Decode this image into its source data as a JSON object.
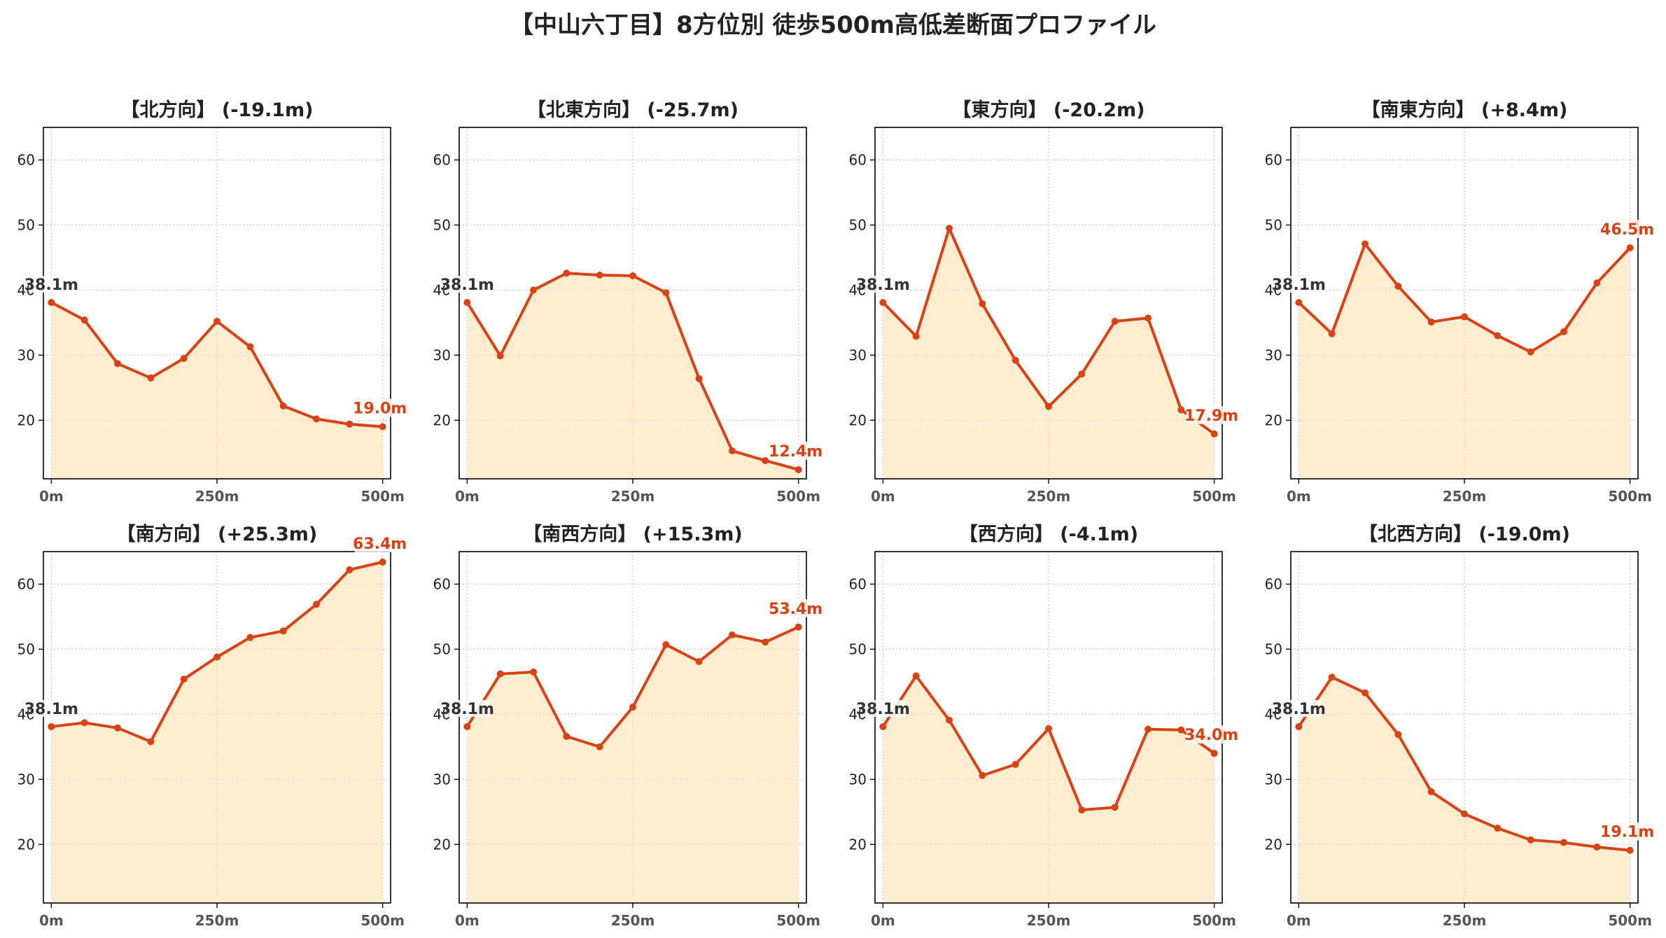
{
  "title": "【中山六丁目】8方位別 徒歩500m高低差断面プロファイル",
  "colors": {
    "line": "#d84315",
    "fill": "#ffe0b2",
    "start_label": "#333333",
    "end_label": "#d84315",
    "grid": "#cccccc",
    "axis": "#000000"
  },
  "chart_data": [
    {
      "type": "area",
      "title": "【北方向】 (-19.1m)",
      "x": [
        0,
        50,
        100,
        150,
        200,
        250,
        300,
        350,
        400,
        450,
        500
      ],
      "values": [
        38.1,
        35.4,
        28.7,
        26.5,
        29.5,
        35.2,
        31.3,
        22.2,
        20.2,
        19.4,
        19.0
      ],
      "xticks": [
        0,
        250,
        500
      ],
      "xtick_labels": [
        "0m",
        "250m",
        "500m"
      ],
      "yticks": [
        20,
        30,
        40,
        50,
        60
      ],
      "ylim": [
        11,
        65
      ],
      "xlim": [
        -12,
        512
      ],
      "start_label": "38.1m",
      "end_label": "19.0m",
      "grid": true
    },
    {
      "type": "area",
      "title": "【北東方向】 (-25.7m)",
      "x": [
        0,
        50,
        100,
        150,
        200,
        250,
        300,
        350,
        400,
        450,
        500
      ],
      "values": [
        38.1,
        29.9,
        40.0,
        42.6,
        42.3,
        42.2,
        39.6,
        26.4,
        15.3,
        13.8,
        12.4
      ],
      "xticks": [
        0,
        250,
        500
      ],
      "xtick_labels": [
        "0m",
        "250m",
        "500m"
      ],
      "yticks": [
        20,
        30,
        40,
        50,
        60
      ],
      "ylim": [
        11,
        65
      ],
      "xlim": [
        -12,
        512
      ],
      "start_label": "38.1m",
      "end_label": "12.4m",
      "grid": true
    },
    {
      "type": "area",
      "title": "【東方向】 (-20.2m)",
      "x": [
        0,
        50,
        100,
        150,
        200,
        250,
        300,
        350,
        400,
        450,
        500
      ],
      "values": [
        38.1,
        32.9,
        49.5,
        37.9,
        29.2,
        22.1,
        27.1,
        35.2,
        35.7,
        21.6,
        17.9
      ],
      "xticks": [
        0,
        250,
        500
      ],
      "xtick_labels": [
        "0m",
        "250m",
        "500m"
      ],
      "yticks": [
        20,
        30,
        40,
        50,
        60
      ],
      "ylim": [
        11,
        65
      ],
      "xlim": [
        -12,
        512
      ],
      "start_label": "38.1m",
      "end_label": "17.9m",
      "grid": true
    },
    {
      "type": "area",
      "title": "【南東方向】 (+8.4m)",
      "x": [
        0,
        50,
        100,
        150,
        200,
        250,
        300,
        350,
        400,
        450,
        500
      ],
      "values": [
        38.1,
        33.3,
        47.1,
        40.6,
        35.1,
        35.9,
        33.0,
        30.5,
        33.6,
        41.1,
        46.5
      ],
      "xticks": [
        0,
        250,
        500
      ],
      "xtick_labels": [
        "0m",
        "250m",
        "500m"
      ],
      "yticks": [
        20,
        30,
        40,
        50,
        60
      ],
      "ylim": [
        11,
        65
      ],
      "xlim": [
        -12,
        512
      ],
      "start_label": "38.1m",
      "end_label": "46.5m",
      "grid": true
    },
    {
      "type": "area",
      "title": "【南方向】 (+25.3m)",
      "x": [
        0,
        50,
        100,
        150,
        200,
        250,
        300,
        350,
        400,
        450,
        500
      ],
      "values": [
        38.1,
        38.7,
        37.9,
        35.8,
        45.4,
        48.8,
        51.8,
        52.8,
        56.9,
        62.2,
        63.4
      ],
      "xticks": [
        0,
        250,
        500
      ],
      "xtick_labels": [
        "0m",
        "250m",
        "500m"
      ],
      "yticks": [
        20,
        30,
        40,
        50,
        60
      ],
      "ylim": [
        11,
        65
      ],
      "xlim": [
        -12,
        512
      ],
      "start_label": "38.1m",
      "end_label": "63.4m",
      "grid": true
    },
    {
      "type": "area",
      "title": "【南西方向】 (+15.3m)",
      "x": [
        0,
        50,
        100,
        150,
        200,
        250,
        300,
        350,
        400,
        450,
        500
      ],
      "values": [
        38.1,
        46.2,
        46.5,
        36.6,
        35.0,
        41.1,
        50.7,
        48.1,
        52.2,
        51.1,
        53.4
      ],
      "xticks": [
        0,
        250,
        500
      ],
      "xtick_labels": [
        "0m",
        "250m",
        "500m"
      ],
      "yticks": [
        20,
        30,
        40,
        50,
        60
      ],
      "ylim": [
        11,
        65
      ],
      "xlim": [
        -12,
        512
      ],
      "start_label": "38.1m",
      "end_label": "53.4m",
      "grid": true
    },
    {
      "type": "area",
      "title": "【西方向】 (-4.1m)",
      "x": [
        0,
        50,
        100,
        150,
        200,
        250,
        300,
        350,
        400,
        450,
        500
      ],
      "values": [
        38.1,
        45.9,
        39.1,
        30.6,
        32.3,
        37.8,
        25.3,
        25.7,
        37.7,
        37.6,
        34.0
      ],
      "xticks": [
        0,
        250,
        500
      ],
      "xtick_labels": [
        "0m",
        "250m",
        "500m"
      ],
      "yticks": [
        20,
        30,
        40,
        50,
        60
      ],
      "ylim": [
        11,
        65
      ],
      "xlim": [
        -12,
        512
      ],
      "start_label": "38.1m",
      "end_label": "34.0m",
      "grid": true
    },
    {
      "type": "area",
      "title": "【北西方向】 (-19.0m)",
      "x": [
        0,
        50,
        100,
        150,
        200,
        250,
        300,
        350,
        400,
        450,
        500
      ],
      "values": [
        38.1,
        45.7,
        43.3,
        36.9,
        28.1,
        24.7,
        22.5,
        20.7,
        20.3,
        19.6,
        19.1
      ],
      "xticks": [
        0,
        250,
        500
      ],
      "xtick_labels": [
        "0m",
        "250m",
        "500m"
      ],
      "yticks": [
        20,
        30,
        40,
        50,
        60
      ],
      "ylim": [
        11,
        65
      ],
      "xlim": [
        -12,
        512
      ],
      "start_label": "38.1m",
      "end_label": "19.1m",
      "grid": true
    }
  ]
}
